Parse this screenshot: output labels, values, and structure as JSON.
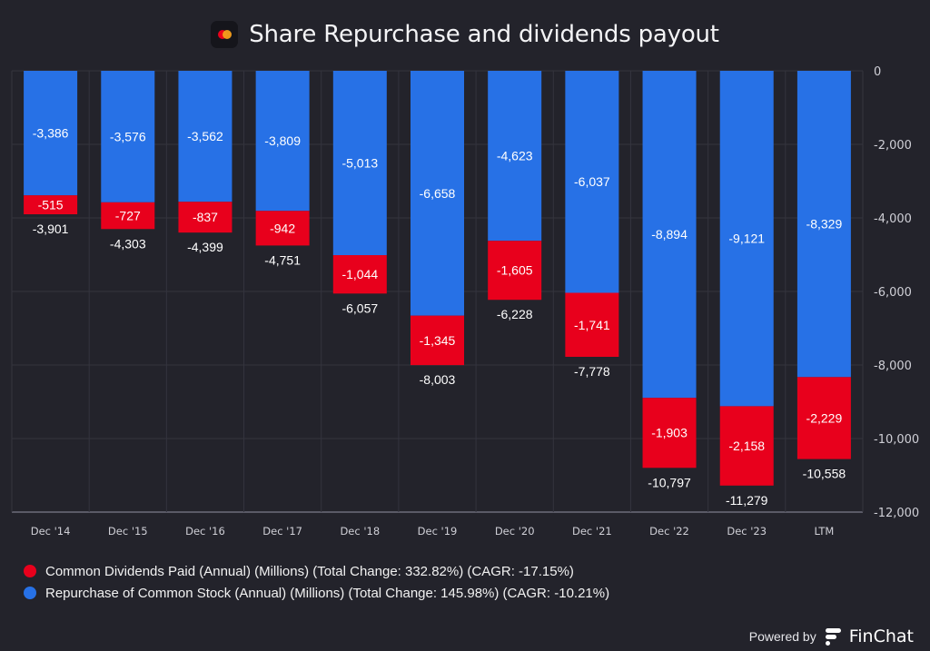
{
  "header": {
    "title": "Share Repurchase and dividends payout",
    "logo_icon": "mastercard-logo-icon"
  },
  "colors": {
    "background": "#23232b",
    "grid": "#34343e",
    "dividends": "#e8001c",
    "repurchase": "#2771e6",
    "label": "#ffffff",
    "tick": "#cfcfd6"
  },
  "chart_data": {
    "type": "bar",
    "stacked": true,
    "title": "Share Repurchase and dividends payout",
    "xlabel": "",
    "ylabel": "",
    "categories": [
      "Dec '14",
      "Dec '15",
      "Dec '16",
      "Dec '17",
      "Dec '18",
      "Dec '19",
      "Dec '20",
      "Dec '21",
      "Dec '22",
      "Dec '23",
      "LTM"
    ],
    "series": [
      {
        "name": "Repurchase of Common Stock (Annual) (Millions)",
        "values": [
          -3386,
          -3576,
          -3562,
          -3809,
          -5013,
          -6658,
          -4623,
          -6037,
          -8894,
          -9121,
          -8329
        ],
        "labels": [
          "-3,386",
          "-3,576",
          "-3,562",
          "-3,809",
          "-5,013",
          "-6,658",
          "-4,623",
          "-6,037",
          "-8,894",
          "-9,121",
          "-8,329"
        ]
      },
      {
        "name": "Common Dividends Paid (Annual) (Millions)",
        "values": [
          -515,
          -727,
          -837,
          -942,
          -1044,
          -1345,
          -1605,
          -1741,
          -1903,
          -2158,
          -2229
        ],
        "labels": [
          "-515",
          "-727",
          "-837",
          "-942",
          "-1,044",
          "-1,345",
          "-1,605",
          "-1,741",
          "-1,903",
          "-2,158",
          "-2,229"
        ]
      }
    ],
    "totals": [
      -3901,
      -4303,
      -4399,
      -4751,
      -6057,
      -8003,
      -6228,
      -7778,
      -10797,
      -11279,
      -10558
    ],
    "total_labels": [
      "-3,901",
      "-4,303",
      "-4,399",
      "-4,751",
      "-6,057",
      "-8,003",
      "-6,228",
      "-7,778",
      "-10,797",
      "-11,279",
      "-10,558"
    ],
    "ylim": [
      -12000,
      0
    ],
    "yticks": [
      0,
      -2000,
      -4000,
      -6000,
      -8000,
      -10000,
      -12000
    ],
    "ytick_labels": [
      "0",
      "-2,000",
      "-4,000",
      "-6,000",
      "-8,000",
      "-10,000",
      "-12,000"
    ],
    "y_axis_side": "right",
    "grid": true,
    "legend_position": "bottom-left"
  },
  "legend": {
    "items": [
      {
        "label": "Common Dividends Paid (Annual) (Millions) (Total Change: 332.82%) (CAGR: -17.15%)",
        "color": "#e8001c"
      },
      {
        "label": "Repurchase of Common Stock (Annual) (Millions) (Total Change: 145.98%) (CAGR: -10.21%)",
        "color": "#2771e6"
      }
    ]
  },
  "footer": {
    "powered_by": "Powered by",
    "brand": "FinChat"
  }
}
